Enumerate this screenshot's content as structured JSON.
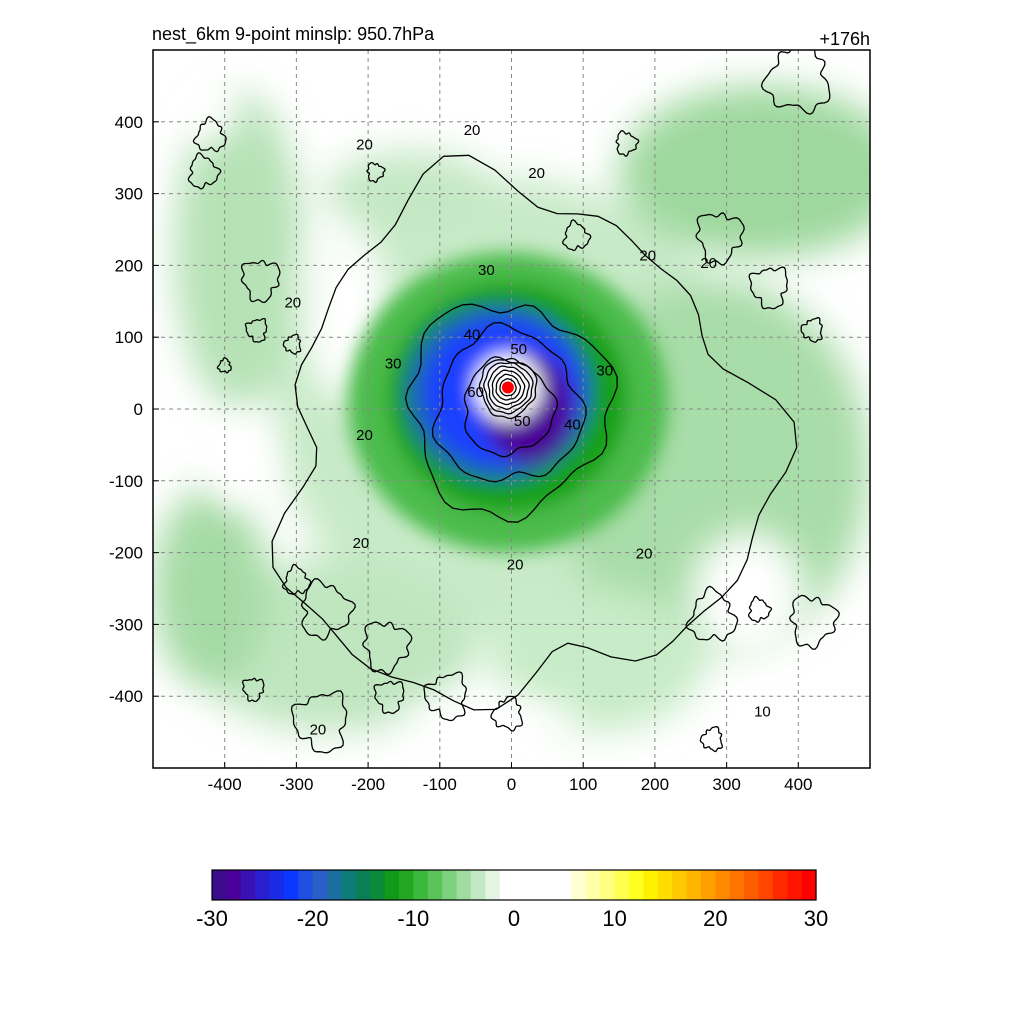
{
  "header": {
    "title": "nest_6km  9-point minslp: 950.7hPa",
    "forecast_hour": "+176h"
  },
  "chart_data": {
    "type": "heatmap",
    "x_ticks": [
      -400,
      -300,
      -200,
      -100,
      0,
      100,
      200,
      300,
      400
    ],
    "y_ticks": [
      400,
      300,
      200,
      100,
      0,
      -100,
      -200,
      -300,
      -400
    ],
    "xlim": [
      -500,
      500
    ],
    "ylim": [
      -500,
      500
    ],
    "grid": true,
    "storm_center": {
      "x": -5,
      "y": 30
    },
    "contour_labels": [
      {
        "text": "20",
        "x": -205,
        "y": 370
      },
      {
        "text": "20",
        "x": -55,
        "y": 390
      },
      {
        "text": "20",
        "x": 35,
        "y": 330
      },
      {
        "text": "20",
        "x": 190,
        "y": 215
      },
      {
        "text": "20",
        "x": 275,
        "y": 205
      },
      {
        "text": "20",
        "x": -305,
        "y": 150
      },
      {
        "text": "20",
        "x": -205,
        "y": -35
      },
      {
        "text": "20",
        "x": -210,
        "y": -185
      },
      {
        "text": "20",
        "x": 5,
        "y": -215
      },
      {
        "text": "20",
        "x": 185,
        "y": -200
      },
      {
        "text": "20",
        "x": -270,
        "y": -445
      },
      {
        "text": "10",
        "x": 350,
        "y": -420
      },
      {
        "text": "30",
        "x": -35,
        "y": 195
      },
      {
        "text": "30",
        "x": -165,
        "y": 65
      },
      {
        "text": "30",
        "x": 130,
        "y": 55
      },
      {
        "text": "40",
        "x": -55,
        "y": 105
      },
      {
        "text": "40",
        "x": 85,
        "y": -20
      },
      {
        "text": "50",
        "x": 10,
        "y": 85
      },
      {
        "text": "50",
        "x": 15,
        "y": -15
      },
      {
        "text": "60",
        "x": -50,
        "y": 25
      }
    ],
    "colorbar": {
      "min": -30,
      "max": 30,
      "ticks": [
        -30,
        -20,
        -10,
        0,
        10,
        20,
        30
      ],
      "colors": [
        "#3b0c8c",
        "#4b0099",
        "#3a11b5",
        "#2a1fd0",
        "#1a2be8",
        "#0a38ff",
        "#1f4fe0",
        "#2a5fc8",
        "#1a6ea0",
        "#0f7a7a",
        "#0a7f55",
        "#0a8a3a",
        "#119919",
        "#22a822",
        "#3cb83c",
        "#5ac45a",
        "#7dd07d",
        "#a0dca0",
        "#c4e8c4",
        "#e2f4e2",
        "#ffffff",
        "#ffffff",
        "#ffffff",
        "#ffffff",
        "#ffffff",
        "#ffffd0",
        "#ffffa8",
        "#ffff80",
        "#ffff50",
        "#ffff20",
        "#fff200",
        "#ffdd00",
        "#ffc800",
        "#ffb400",
        "#ff9f00",
        "#ff8a00",
        "#ff7400",
        "#ff5e00",
        "#ff4500",
        "#ff2a00",
        "#ff1500",
        "#ff0000"
      ]
    }
  }
}
